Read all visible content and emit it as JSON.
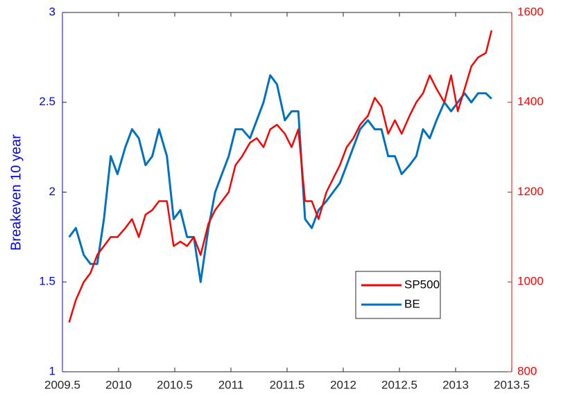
{
  "chart_data": {
    "type": "line",
    "ylabel": "Breakeven 10 year",
    "xlim": [
      2009.5,
      2013.5
    ],
    "xticks": [
      2009.5,
      2010,
      2010.5,
      2011,
      2011.5,
      2012,
      2012.5,
      2013,
      2013.5
    ],
    "ylim": [
      1,
      3
    ],
    "yticks": [
      1,
      1.5,
      2,
      2.5,
      3
    ],
    "y2lim": [
      800,
      1600
    ],
    "y2ticks": [
      800,
      1000,
      1200,
      1400,
      1600
    ],
    "y_axis_color": "#0000ff",
    "y2_axis_color": "#ff0000",
    "legend": "southeast",
    "x": [
      2009.56,
      2009.62,
      2009.69,
      2009.75,
      2009.81,
      2009.87,
      2009.93,
      2009.99,
      2010.06,
      2010.12,
      2010.18,
      2010.24,
      2010.3,
      2010.36,
      2010.43,
      2010.49,
      2010.55,
      2010.61,
      2010.67,
      2010.73,
      2010.8,
      2010.86,
      2010.92,
      2010.98,
      2011.04,
      2011.1,
      2011.17,
      2011.23,
      2011.29,
      2011.35,
      2011.41,
      2011.48,
      2011.54,
      2011.6,
      2011.66,
      2011.72,
      2011.78,
      2011.85,
      2011.91,
      2011.97,
      2012.03,
      2012.09,
      2012.15,
      2012.22,
      2012.28,
      2012.34,
      2012.4,
      2012.46,
      2012.52,
      2012.59,
      2012.65,
      2012.71,
      2012.77,
      2012.83,
      2012.9,
      2012.96,
      2013.02,
      2013.08,
      2013.14,
      2013.2,
      2013.27,
      2013.32
    ],
    "series": [
      {
        "name": "SP500",
        "color": "#ff0000",
        "axis": "y2",
        "values": [
          910,
          960,
          1000,
          1020,
          1060,
          1080,
          1100,
          1100,
          1120,
          1140,
          1100,
          1150,
          1160,
          1180,
          1180,
          1080,
          1090,
          1080,
          1100,
          1060,
          1130,
          1160,
          1180,
          1200,
          1260,
          1280,
          1310,
          1320,
          1300,
          1340,
          1350,
          1330,
          1300,
          1340,
          1180,
          1180,
          1140,
          1200,
          1230,
          1260,
          1300,
          1320,
          1350,
          1370,
          1410,
          1390,
          1330,
          1360,
          1330,
          1370,
          1400,
          1420,
          1460,
          1430,
          1400,
          1460,
          1380,
          1430,
          1480,
          1500,
          1510,
          1560
        ]
      },
      {
        "name": "BE",
        "color": "#0072bd",
        "axis": "y",
        "values": [
          1.75,
          1.8,
          1.65,
          1.6,
          1.6,
          1.85,
          2.2,
          2.1,
          2.25,
          2.35,
          2.3,
          2.15,
          2.2,
          2.35,
          2.2,
          1.85,
          1.9,
          1.75,
          1.75,
          1.5,
          1.8,
          2.0,
          2.1,
          2.2,
          2.35,
          2.35,
          2.3,
          2.4,
          2.5,
          2.65,
          2.6,
          2.4,
          2.45,
          2.45,
          1.85,
          1.8,
          1.9,
          1.95,
          2.0,
          2.05,
          2.15,
          2.25,
          2.35,
          2.4,
          2.35,
          2.35,
          2.2,
          2.2,
          2.1,
          2.15,
          2.2,
          2.35,
          2.3,
          2.4,
          2.5,
          2.45,
          2.5,
          2.55,
          2.5,
          2.55,
          2.55,
          2.52
        ]
      }
    ]
  }
}
